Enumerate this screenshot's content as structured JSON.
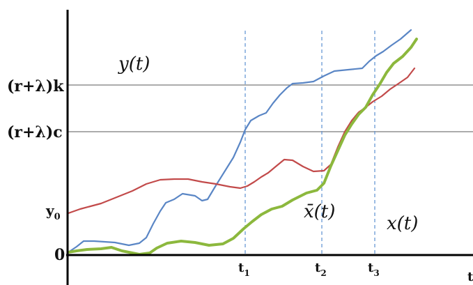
{
  "chart_data": {
    "type": "line",
    "title": "",
    "xlabel": "t",
    "ylabel": "",
    "y_level_labels": {
      "zero": "0",
      "y0": "y",
      "y0_sub": "0",
      "rc": "(r+λ)c",
      "rk": "(r+λ)k"
    },
    "y_levels": {
      "zero": 0,
      "y0": 60,
      "rc": 177,
      "rk": 244
    },
    "vertical_markers": [
      {
        "name": "t",
        "sub": "1",
        "x": 352
      },
      {
        "name": "t",
        "sub": "2",
        "x": 462
      },
      {
        "name": "t",
        "sub": "3",
        "x": 538
      }
    ],
    "xlim": [
      97,
      679
    ],
    "ylim": [
      -40,
      352
    ],
    "grid": false,
    "series": [
      {
        "name": "x(t)",
        "color": "#5a86c5",
        "points": [
          [
            98,
            4
          ],
          [
            110,
            12
          ],
          [
            120,
            20
          ],
          [
            135,
            20
          ],
          [
            165,
            18
          ],
          [
            185,
            14
          ],
          [
            200,
            17
          ],
          [
            210,
            25
          ],
          [
            220,
            45
          ],
          [
            230,
            63
          ],
          [
            238,
            75
          ],
          [
            250,
            80
          ],
          [
            262,
            88
          ],
          [
            280,
            85
          ],
          [
            290,
            78
          ],
          [
            298,
            80
          ],
          [
            310,
            100
          ],
          [
            325,
            124
          ],
          [
            335,
            140
          ],
          [
            345,
            162
          ],
          [
            352,
            180
          ],
          [
            360,
            193
          ],
          [
            372,
            200
          ],
          [
            382,
            204
          ],
          [
            392,
            218
          ],
          [
            402,
            230
          ],
          [
            412,
            240
          ],
          [
            420,
            246
          ],
          [
            435,
            247
          ],
          [
            450,
            249
          ],
          [
            465,
            257
          ],
          [
            480,
            264
          ],
          [
            500,
            266
          ],
          [
            520,
            268
          ],
          [
            530,
            278
          ],
          [
            540,
            286
          ],
          [
            550,
            292
          ],
          [
            562,
            301
          ],
          [
            575,
            310
          ],
          [
            590,
            323
          ]
        ],
        "label": "x(t)",
        "label_pos": [
          555,
          37
        ]
      },
      {
        "name": "y(t)",
        "color": "#c24a4a",
        "points": [
          [
            98,
            60
          ],
          [
            115,
            66
          ],
          [
            130,
            70
          ],
          [
            145,
            74
          ],
          [
            160,
            80
          ],
          [
            175,
            86
          ],
          [
            190,
            92
          ],
          [
            210,
            102
          ],
          [
            230,
            108
          ],
          [
            250,
            109
          ],
          [
            270,
            109
          ],
          [
            290,
            105
          ],
          [
            310,
            102
          ],
          [
            330,
            98
          ],
          [
            345,
            96
          ],
          [
            355,
            99
          ],
          [
            365,
            105
          ],
          [
            375,
            112
          ],
          [
            385,
            118
          ],
          [
            397,
            128
          ],
          [
            408,
            137
          ],
          [
            420,
            136
          ],
          [
            435,
            127
          ],
          [
            450,
            120
          ],
          [
            465,
            121
          ],
          [
            475,
            130
          ],
          [
            485,
            155
          ],
          [
            495,
            177
          ],
          [
            505,
            193
          ],
          [
            515,
            205
          ],
          [
            525,
            212
          ],
          [
            535,
            220
          ],
          [
            548,
            228
          ],
          [
            560,
            238
          ],
          [
            572,
            246
          ],
          [
            585,
            255
          ],
          [
            595,
            268
          ]
        ],
        "label": "y(t)",
        "label_pos": [
          170,
          266
        ]
      },
      {
        "name": "x̄(t)",
        "color": "#8cb83d",
        "points": [
          [
            98,
            4
          ],
          [
            110,
            6
          ],
          [
            125,
            8
          ],
          [
            145,
            9
          ],
          [
            160,
            11
          ],
          [
            175,
            6
          ],
          [
            200,
            1
          ],
          [
            215,
            3
          ],
          [
            225,
            10
          ],
          [
            240,
            17
          ],
          [
            260,
            20
          ],
          [
            280,
            18
          ],
          [
            300,
            14
          ],
          [
            320,
            16
          ],
          [
            335,
            24
          ],
          [
            350,
            38
          ],
          [
            362,
            48
          ],
          [
            375,
            58
          ],
          [
            390,
            66
          ],
          [
            405,
            70
          ],
          [
            420,
            79
          ],
          [
            440,
            89
          ],
          [
            455,
            93
          ],
          [
            465,
            103
          ],
          [
            475,
            128
          ],
          [
            485,
            150
          ],
          [
            495,
            172
          ],
          [
            505,
            188
          ],
          [
            515,
            202
          ],
          [
            525,
            212
          ],
          [
            535,
            230
          ],
          [
            545,
            245
          ],
          [
            555,
            262
          ],
          [
            565,
            275
          ],
          [
            578,
            285
          ],
          [
            590,
            298
          ],
          [
            598,
            310
          ]
        ],
        "label": "x̄(t)",
        "label_pos": [
          436,
          54
        ]
      }
    ]
  }
}
